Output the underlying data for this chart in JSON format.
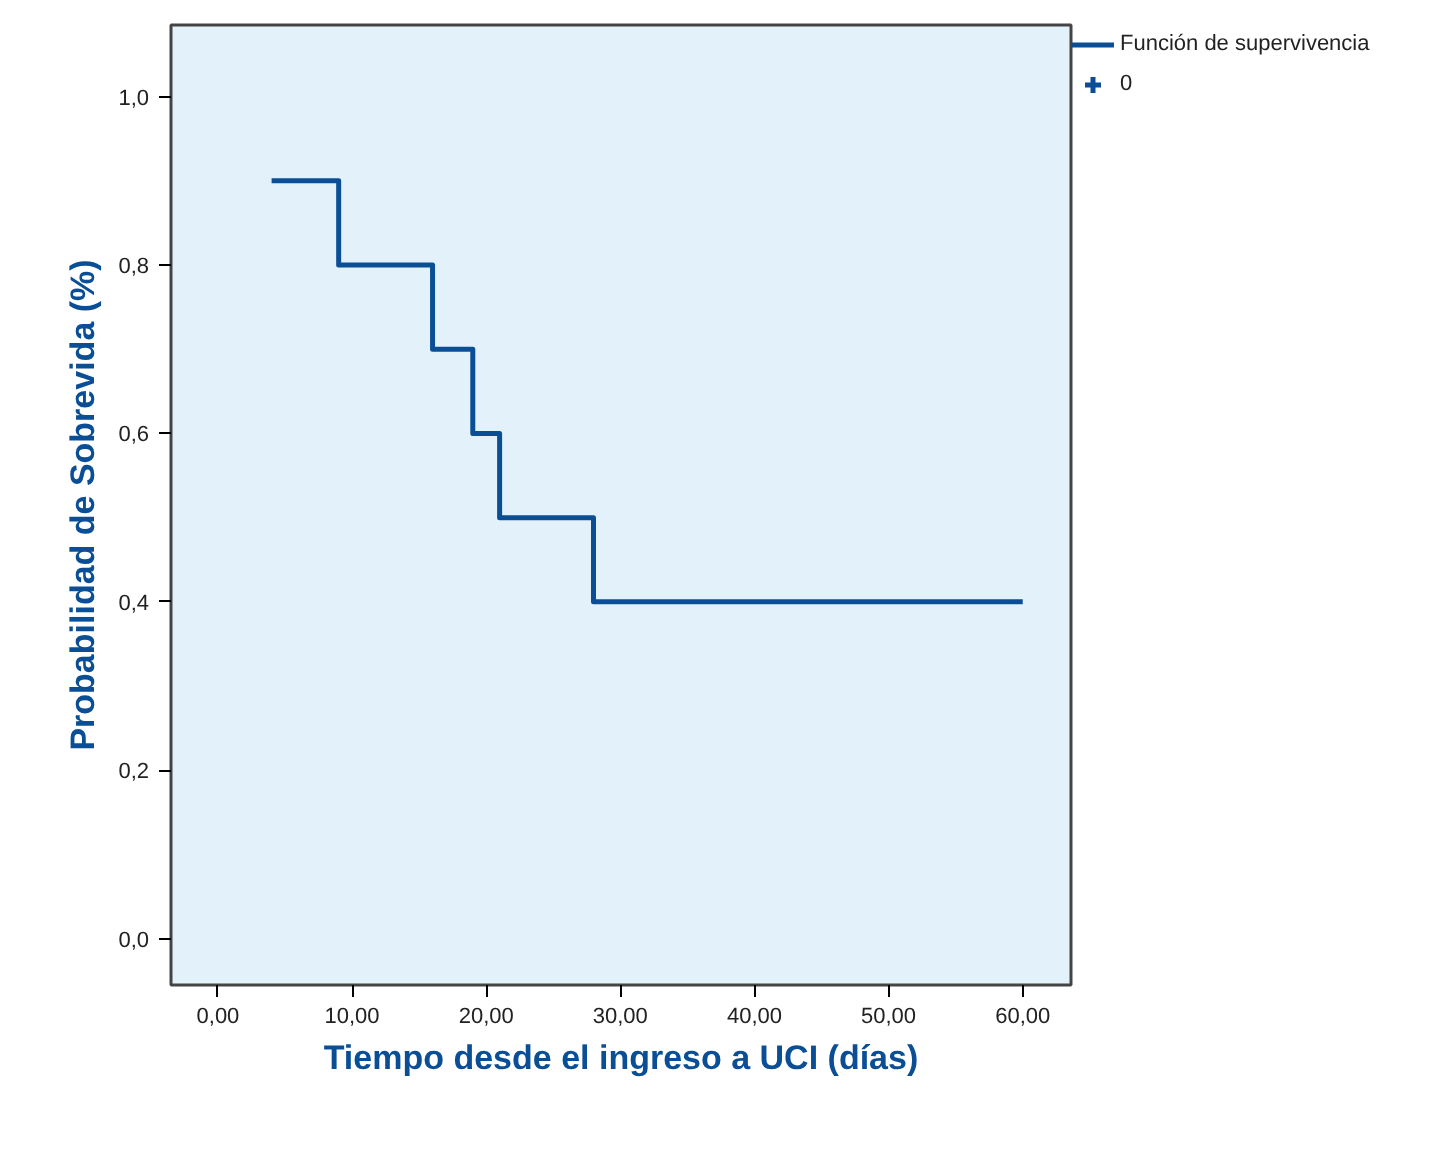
{
  "chart_data": {
    "type": "step",
    "xlabel": "Tiempo desde el ingreso a UCI (días)",
    "ylabel": "Probabilidad de Sobrevida (%)",
    "x": [
      4,
      9,
      16,
      19,
      21,
      28,
      60
    ],
    "series": [
      {
        "name": "Función de supervivencia",
        "color": "#0a4f96",
        "values": [
          0.9,
          0.8,
          0.7,
          0.6,
          0.5,
          0.4,
          0.4
        ]
      },
      {
        "name": "0",
        "type": "scatter",
        "marker": "cross",
        "color": "#0a4f96",
        "values": [
          null,
          null,
          null,
          null,
          null,
          null,
          null
        ]
      }
    ],
    "xlim": [
      -3.5,
      63.6
    ],
    "ylim": [
      -0.055,
      1.085
    ],
    "xticks": [
      {
        "value": 0,
        "label": "0,00"
      },
      {
        "value": 10,
        "label": "10,00"
      },
      {
        "value": 20,
        "label": "20,00"
      },
      {
        "value": 30,
        "label": "30,00"
      },
      {
        "value": 40,
        "label": "40,00"
      },
      {
        "value": 50,
        "label": "50,00"
      },
      {
        "value": 60,
        "label": "60,00"
      }
    ],
    "yticks": [
      {
        "value": 0,
        "label": "0,0"
      },
      {
        "value": 0.2,
        "label": "0,2"
      },
      {
        "value": 0.4,
        "label": "0,4"
      },
      {
        "value": 0.6,
        "label": "0,6"
      },
      {
        "value": 0.8,
        "label": "0,8"
      },
      {
        "value": 1,
        "label": "1,0"
      }
    ],
    "grid": false,
    "legend": "top right"
  }
}
